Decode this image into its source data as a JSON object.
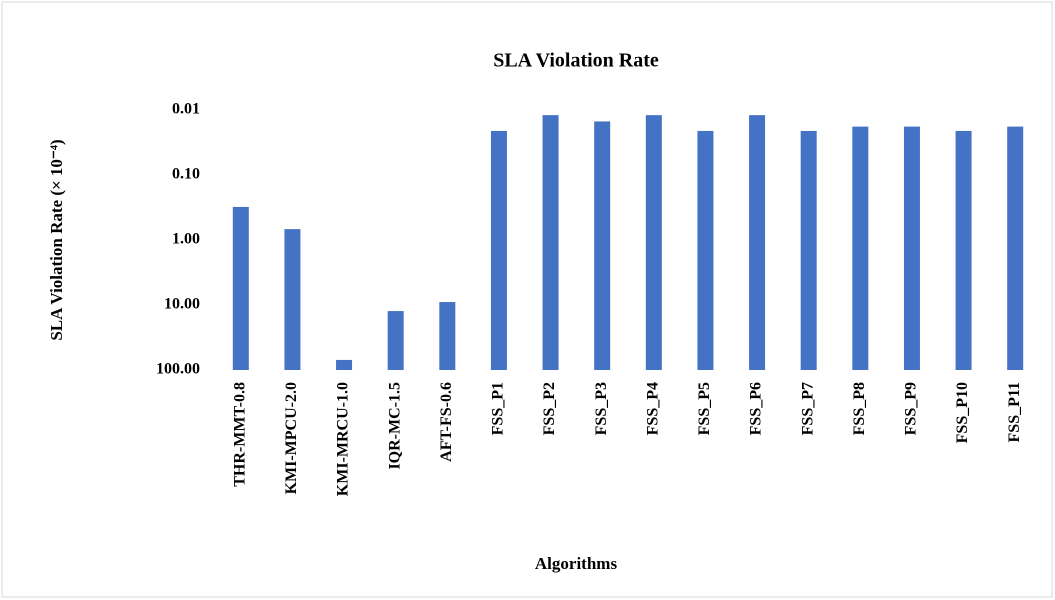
{
  "chart_data": {
    "type": "bar",
    "title": "SLA Violation  Rate",
    "x_label": "Algorithms",
    "y_label": "SLA Violation Rate (× 10⁻⁴)",
    "categories": [
      "THR-MMT-0.8",
      "KMI-MPCU-2.0",
      "KMI-MRCU-1.0",
      "IQR-MC-1.5",
      "AFT-FS-0.6",
      "FSS_P1",
      "FSS_P2",
      "FSS_P3",
      "FSS_P4",
      "FSS_P5",
      "FSS_P6",
      "FSS_P7",
      "FSS_P8",
      "FSS_P9",
      "FSS_P10",
      "FSS_P11"
    ],
    "values": [
      0.31,
      0.68,
      70,
      12.4,
      9,
      0.021,
      0.012,
      0.015,
      0.012,
      0.021,
      0.012,
      0.021,
      0.018,
      0.018,
      0.021,
      0.018
    ],
    "color": "#4472c4",
    "log_scale": true,
    "ylim": [
      100,
      0.01
    ],
    "yticks": [
      0.01,
      {
        "value": 0.1,
        "label": "0.10"
      },
      {
        "value": 1,
        "label": "1.00"
      },
      {
        "value": 10,
        "label": "10.00"
      },
      {
        "value": 100,
        "label": "100.00"
      }
    ],
    "grid": false
  }
}
